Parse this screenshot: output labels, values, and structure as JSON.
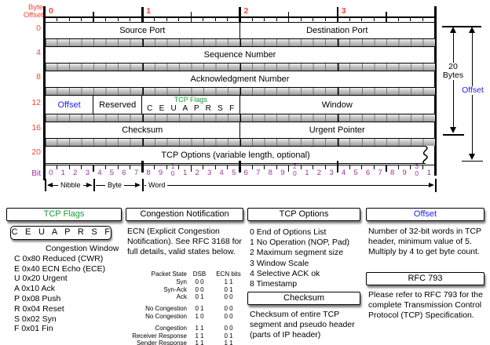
{
  "colors": {
    "red": "#fb4437",
    "purple": "#993399",
    "green": "#12a035",
    "blue": "#2121ee"
  },
  "diagram": {
    "byte_offset_label": "Byte Offset",
    "row_offsets": [
      "0",
      "4",
      "8",
      "12",
      "16",
      "20"
    ],
    "top_ruler_numbers": [
      "0",
      "1",
      "2",
      "3"
    ],
    "rows": [
      [
        "Source Port",
        "Destination Port"
      ],
      [
        "Sequence Number"
      ],
      [
        "Acknowledgment Number"
      ],
      [
        "Offset",
        "Reserved",
        "TCP Flags",
        "C E U A P R S F",
        "Window"
      ],
      [
        "Checksum",
        "Urgent Pointer"
      ],
      [
        "TCP Options (variable length, optional)"
      ]
    ],
    "bit_label": "Bit",
    "bit_numbers": [
      "0",
      "1",
      "2",
      "3",
      "4",
      "5",
      "6",
      "7",
      "8",
      "9",
      "10",
      "1",
      "2",
      "3",
      "4",
      "5",
      "6",
      "7",
      "8",
      "9",
      "20",
      "1",
      "2",
      "3",
      "4",
      "5",
      "6",
      "7",
      "8",
      "9",
      "30",
      "1"
    ],
    "scale_labels": [
      "Nibble",
      "Byte",
      "Word"
    ],
    "bytes_annotation": "20 Bytes",
    "offset_annotation": "Offset"
  },
  "legend": {
    "tcp_flags": {
      "title": "TCP Flags",
      "letters": "C E U A P R S F",
      "lines": [
        "Congestion Window",
        "C 0x80 Reduced (CWR)",
        "E 0x40 ECN Echo (ECE)",
        "U 0x20 Urgent",
        "A 0x10 Ack",
        "P 0x08 Push",
        "R 0x04 Reset",
        "S 0x02 Syn",
        "F 0x01 Fin"
      ]
    },
    "congestion": {
      "title": "Congestion Notification",
      "intro": "ECN (Explicit Congestion Notification).  See RFC 3168 for full details, valid states below.",
      "table": {
        "header": [
          "Packet State",
          "DSB",
          "ECN bits"
        ],
        "rows": [
          [
            "Syn",
            "0 0",
            "1 1"
          ],
          [
            "Syn-Ack",
            "0 0",
            "0 1"
          ],
          [
            "Ack",
            "0 1",
            "0 0"
          ],
          null,
          [
            "No Congestion",
            "0 1",
            "0 0"
          ],
          [
            "No Congestion",
            "1 0",
            "0 0"
          ],
          null,
          [
            "Congestion",
            "1 1",
            "0 0"
          ],
          [
            "Receiver Response",
            "1 1",
            "0 1"
          ],
          [
            "Sender Response",
            "1 1",
            "1 1"
          ]
        ]
      }
    },
    "tcp_options": {
      "title": "TCP Options",
      "items": [
        "0 End of Options List",
        "1 No Operation (NOP, Pad)",
        "2 Maximum segment size",
        "3 Window Scale",
        "4 Selective ACK ok",
        "8 Timestamp"
      ]
    },
    "checksum": {
      "title": "Checksum",
      "text": "Checksum of entire TCP segment and pseudo header (parts of IP header)"
    },
    "offset": {
      "title": "Offset",
      "text": "Number of 32-bit words in TCP header, minimum value of 5.  Multiply by 4 to get byte count."
    },
    "rfc": {
      "title": "RFC 793",
      "text": "Please refer to RFC 793 for the complete Transmission Control Protocol (TCP) Specification."
    }
  }
}
